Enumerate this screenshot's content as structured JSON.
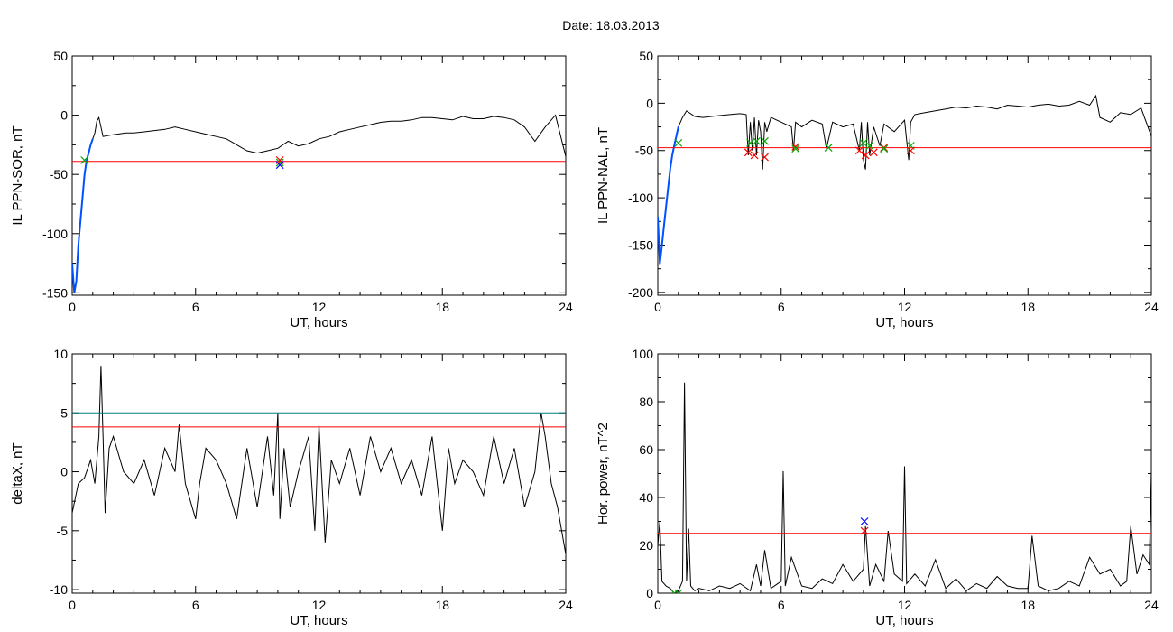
{
  "figure": {
    "title": "Date:  18.03.2013"
  },
  "chart_data": [
    {
      "type": "line",
      "id": "top-left",
      "xlabel": "UT, hours",
      "ylabel": "IL PPN-SOR, nT",
      "xlim": [
        0,
        24
      ],
      "ylim": [
        -152,
        50
      ],
      "xticks": [
        0,
        6,
        12,
        18,
        24
      ],
      "yticks": [
        50,
        0,
        -50,
        -100,
        -150
      ],
      "threshold": {
        "value": -39,
        "color": "#ff0000"
      },
      "series": [
        {
          "color": "#000000",
          "x": [
            0,
            0.1,
            0.2,
            0.3,
            0.4,
            0.5,
            0.6,
            0.7,
            0.8,
            0.9,
            1.0,
            1.1,
            1.2,
            1.3,
            1.5,
            1.8,
            2.2,
            2.6,
            3.0,
            3.5,
            4.0,
            4.5,
            5.0,
            5.5,
            6.0,
            6.5,
            7.0,
            7.5,
            8.0,
            8.5,
            9.0,
            9.5,
            10.0,
            10.5,
            11.0,
            11.5,
            12.0,
            12.5,
            13.0,
            13.5,
            14.0,
            14.5,
            15.0,
            15.5,
            16.0,
            16.5,
            17.0,
            17.5,
            18.0,
            18.5,
            19.0,
            19.5,
            20.0,
            20.5,
            21.0,
            21.5,
            22.0,
            22.5,
            23.0,
            23.5,
            24.0
          ],
          "y": [
            -125,
            -150,
            -140,
            -110,
            -90,
            -70,
            -50,
            -38,
            -32,
            -25,
            -20,
            -15,
            -5,
            -2,
            -18,
            -17,
            -16,
            -15,
            -15,
            -14,
            -13,
            -12,
            -10,
            -12,
            -14,
            -16,
            -18,
            -20,
            -25,
            -30,
            -32,
            -30,
            -28,
            -22,
            -26,
            -24,
            -20,
            -18,
            -14,
            -12,
            -10,
            -8,
            -6,
            -5,
            -5,
            -4,
            -2,
            -2,
            -3,
            -4,
            -1,
            -3,
            -3,
            -1,
            -2,
            -4,
            -10,
            -22,
            -10,
            0,
            -35
          ]
        },
        {
          "color": "#0050ff",
          "x": [
            0,
            0.1,
            0.2,
            0.3,
            0.4,
            0.5,
            0.6,
            0.7,
            0.8,
            0.9,
            1.0
          ],
          "y": [
            -125,
            -150,
            -140,
            -110,
            -90,
            -70,
            -50,
            -38,
            -32,
            -25,
            -20
          ]
        }
      ],
      "markers": [
        {
          "x": 0.6,
          "y": -38,
          "color": "#00aa00"
        },
        {
          "x": 10.1,
          "y": -40,
          "color": "#00aa00"
        },
        {
          "x": 10.1,
          "y": -42,
          "color": "#0000ff"
        },
        {
          "x": 10.1,
          "y": -38,
          "color": "#ff0000"
        }
      ]
    },
    {
      "type": "line",
      "id": "top-right",
      "xlabel": "UT, hours",
      "ylabel": "IL PPN-NAL, nT",
      "xlim": [
        0,
        24
      ],
      "ylim": [
        -203,
        50
      ],
      "xticks": [
        0,
        6,
        12,
        18,
        24
      ],
      "yticks": [
        50,
        0,
        -50,
        -100,
        -150,
        -200
      ],
      "threshold": {
        "value": -47,
        "color": "#ff0000"
      },
      "series": [
        {
          "color": "#000000",
          "x": [
            0,
            0.1,
            0.2,
            0.3,
            0.4,
            0.5,
            0.6,
            0.7,
            0.8,
            0.9,
            1.0,
            1.2,
            1.4,
            1.8,
            2.2,
            2.6,
            3.0,
            3.5,
            4.0,
            4.3,
            4.4,
            4.5,
            4.6,
            4.7,
            4.8,
            4.9,
            5.0,
            5.1,
            5.2,
            5.3,
            5.5,
            6.0,
            6.5,
            6.6,
            6.7,
            7.0,
            7.5,
            8.0,
            8.2,
            8.5,
            9.0,
            9.5,
            9.8,
            9.9,
            10.0,
            10.1,
            10.2,
            10.3,
            10.5,
            10.8,
            11.0,
            11.5,
            12.0,
            12.2,
            12.3,
            12.5,
            13.0,
            13.5,
            14.0,
            14.5,
            15.0,
            15.5,
            16.0,
            16.5,
            17.0,
            17.5,
            18.0,
            18.5,
            19.0,
            19.5,
            20.0,
            20.5,
            21.0,
            21.3,
            21.5,
            22.0,
            22.5,
            23.0,
            23.5,
            24.0
          ],
          "y": [
            -120,
            -170,
            -150,
            -130,
            -110,
            -90,
            -70,
            -55,
            -45,
            -35,
            -25,
            -15,
            -8,
            -14,
            -15,
            -14,
            -13,
            -12,
            -11,
            -12,
            -55,
            -20,
            -50,
            -15,
            -55,
            -18,
            -30,
            -70,
            -20,
            -30,
            -15,
            -20,
            -25,
            -50,
            -20,
            -25,
            -18,
            -22,
            -48,
            -20,
            -25,
            -22,
            -50,
            -20,
            -60,
            -70,
            -20,
            -55,
            -25,
            -45,
            -22,
            -30,
            -18,
            -60,
            -20,
            -12,
            -10,
            -8,
            -6,
            -4,
            -5,
            -3,
            -4,
            -6,
            -2,
            -3,
            -4,
            -2,
            -1,
            -3,
            -2,
            2,
            -2,
            8,
            -15,
            -20,
            -10,
            -12,
            -5,
            -35
          ]
        },
        {
          "color": "#0050ff",
          "x": [
            0,
            0.1,
            0.2,
            0.3,
            0.4,
            0.5,
            0.6,
            0.7,
            0.8,
            0.9,
            1.0
          ],
          "y": [
            -120,
            -170,
            -150,
            -130,
            -110,
            -90,
            -70,
            -55,
            -45,
            -35,
            -25
          ]
        }
      ],
      "markers": [
        {
          "x": 1.0,
          "y": -42,
          "color": "#00aa00"
        },
        {
          "x": 4.4,
          "y": -52,
          "color": "#ff0000"
        },
        {
          "x": 4.5,
          "y": -42,
          "color": "#00aa00"
        },
        {
          "x": 4.7,
          "y": -55,
          "color": "#ff0000"
        },
        {
          "x": 4.8,
          "y": -40,
          "color": "#00aa00"
        },
        {
          "x": 5.2,
          "y": -40,
          "color": "#00aa00"
        },
        {
          "x": 5.2,
          "y": -57,
          "color": "#ff0000"
        },
        {
          "x": 6.7,
          "y": -46,
          "color": "#ff0000"
        },
        {
          "x": 6.7,
          "y": -48,
          "color": "#00aa00"
        },
        {
          "x": 8.3,
          "y": -47,
          "color": "#00aa00"
        },
        {
          "x": 9.8,
          "y": -50,
          "color": "#ff0000"
        },
        {
          "x": 10.0,
          "y": -42,
          "color": "#00aa00"
        },
        {
          "x": 10.1,
          "y": -55,
          "color": "#ff0000"
        },
        {
          "x": 10.3,
          "y": -45,
          "color": "#00aa00"
        },
        {
          "x": 10.5,
          "y": -52,
          "color": "#ff0000"
        },
        {
          "x": 11.0,
          "y": -47,
          "color": "#ff0000"
        },
        {
          "x": 11.0,
          "y": -48,
          "color": "#00aa00"
        },
        {
          "x": 12.3,
          "y": -45,
          "color": "#00aa00"
        },
        {
          "x": 12.3,
          "y": -50,
          "color": "#ff0000"
        }
      ]
    },
    {
      "type": "line",
      "id": "bottom-left",
      "xlabel": "UT, hours",
      "ylabel": "deltaX, nT",
      "xlim": [
        0,
        24
      ],
      "ylim": [
        -10.3,
        10
      ],
      "xticks": [
        0,
        6,
        12,
        18,
        24
      ],
      "yticks": [
        10,
        5,
        0,
        -5,
        -10
      ],
      "threshold": {
        "value": 3.8,
        "color": "#ff0000"
      },
      "threshold2": {
        "value": 5.0,
        "color": "#008080"
      },
      "series": [
        {
          "color": "#000000",
          "x": [
            0,
            0.3,
            0.6,
            0.9,
            1.1,
            1.3,
            1.4,
            1.5,
            1.6,
            1.8,
            2.0,
            2.5,
            3.0,
            3.5,
            4.0,
            4.5,
            5.0,
            5.2,
            5.5,
            6.0,
            6.2,
            6.5,
            7.0,
            7.5,
            8.0,
            8.5,
            9.0,
            9.5,
            9.8,
            10.0,
            10.1,
            10.3,
            10.6,
            11.0,
            11.5,
            11.8,
            12.0,
            12.3,
            12.6,
            13.0,
            13.5,
            14.0,
            14.5,
            15.0,
            15.5,
            16.0,
            16.5,
            17.0,
            17.5,
            18.0,
            18.3,
            18.6,
            19.0,
            19.5,
            20.0,
            20.5,
            21.0,
            21.5,
            22.0,
            22.5,
            22.8,
            23.0,
            23.3,
            23.6,
            24.0
          ],
          "y": [
            -3.5,
            -1,
            -0.5,
            1,
            -1,
            3,
            9,
            3,
            -3.5,
            2,
            3,
            0,
            -1,
            1,
            -2,
            2,
            0,
            4,
            -1,
            -4,
            -1,
            2,
            1,
            -1,
            -4,
            2,
            -3,
            3,
            -2,
            5,
            -4,
            2,
            -3,
            0,
            3,
            -5,
            4,
            -6,
            1,
            -1,
            2,
            -2,
            3,
            0,
            2,
            -1,
            1,
            -2,
            3,
            -5,
            2,
            -1,
            1,
            0,
            -2,
            3,
            -1,
            2,
            -3,
            0,
            5,
            3,
            -1,
            -3,
            -7
          ]
        }
      ],
      "markers": []
    },
    {
      "type": "line",
      "id": "bottom-right",
      "xlabel": "UT, hours",
      "ylabel": "Hor. power, nT^2",
      "xlim": [
        0,
        24
      ],
      "ylim": [
        0,
        100
      ],
      "xticks": [
        0,
        6,
        12,
        18,
        24
      ],
      "yticks": [
        100,
        80,
        60,
        40,
        20,
        0
      ],
      "threshold": {
        "value": 25,
        "color": "#ff0000"
      },
      "series": [
        {
          "color": "#000000",
          "x": [
            0,
            0.1,
            0.2,
            0.4,
            0.6,
            0.8,
            1.0,
            1.2,
            1.3,
            1.4,
            1.5,
            1.6,
            1.7,
            1.8,
            2.0,
            2.5,
            3.0,
            3.5,
            4.0,
            4.5,
            4.8,
            5.0,
            5.2,
            5.5,
            6.0,
            6.1,
            6.2,
            6.5,
            7.0,
            7.5,
            8.0,
            8.5,
            9.0,
            9.5,
            10.0,
            10.1,
            10.3,
            10.6,
            11.0,
            11.2,
            11.5,
            11.9,
            12.0,
            12.1,
            12.5,
            13.0,
            13.5,
            14.0,
            14.5,
            15.0,
            15.5,
            16.0,
            16.5,
            17.0,
            17.5,
            18.0,
            18.2,
            18.5,
            19.0,
            19.5,
            20.0,
            20.5,
            21.0,
            21.5,
            22.0,
            22.5,
            22.8,
            23.0,
            23.3,
            23.6,
            23.9,
            24.0
          ],
          "y": [
            20,
            30,
            5,
            3,
            2,
            0,
            1,
            5,
            88,
            5,
            27,
            3,
            2,
            1,
            2,
            1,
            3,
            2,
            4,
            1,
            12,
            3,
            18,
            2,
            5,
            51,
            3,
            15,
            3,
            2,
            6,
            4,
            12,
            5,
            10,
            28,
            3,
            12,
            5,
            26,
            8,
            5,
            53,
            4,
            8,
            3,
            14,
            2,
            6,
            1,
            4,
            2,
            7,
            3,
            2,
            2,
            24,
            3,
            1,
            2,
            5,
            3,
            15,
            8,
            10,
            3,
            5,
            28,
            8,
            16,
            12,
            51
          ]
        }
      ],
      "markers": [
        {
          "x": 10.05,
          "y": 30,
          "color": "#0000ff"
        },
        {
          "x": 10.05,
          "y": 26,
          "color": "#ff0000"
        },
        {
          "x": 0.8,
          "y": 0,
          "color": "#00aa00"
        },
        {
          "x": 1.0,
          "y": 0,
          "color": "#00aa00"
        }
      ]
    }
  ]
}
